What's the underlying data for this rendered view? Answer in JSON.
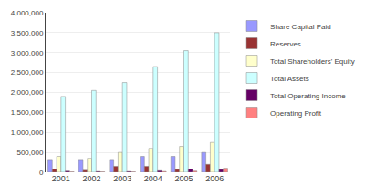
{
  "chart_data": {
    "type": "bar",
    "categories": [
      "2001",
      "2002",
      "2003",
      "2004",
      "2005",
      "2006"
    ],
    "series": [
      {
        "name": "Share Capital Paid",
        "color": "#9999FF",
        "values": [
          300000,
          300000,
          300000,
          400000,
          400000,
          500000
        ]
      },
      {
        "name": "Reserves",
        "color": "#993333",
        "values": [
          80000,
          50000,
          150000,
          150000,
          70000,
          200000
        ]
      },
      {
        "name": "Total Shareholders' Equity",
        "color": "#FFFFCC",
        "values": [
          400000,
          350000,
          500000,
          600000,
          650000,
          750000
        ]
      },
      {
        "name": "Total Assets",
        "color": "#CCFFFF",
        "values": [
          1900000,
          2050000,
          2250000,
          2650000,
          3050000,
          3500000
        ]
      },
      {
        "name": "Total Operating Income",
        "color": "#660066",
        "values": [
          30000,
          20000,
          20000,
          40000,
          80000,
          70000
        ]
      },
      {
        "name": "Operating Profit",
        "color": "#FF8080",
        "values": [
          10000,
          10000,
          10000,
          20000,
          30000,
          100000
        ]
      }
    ],
    "ylim": [
      0,
      4000000
    ],
    "yticks": [
      0,
      {
        "value": 500000,
        "label": "500,000"
      },
      {
        "value": 1000000,
        "label": "1,000,000"
      },
      {
        "value": 1500000,
        "label": "1,500,000"
      },
      {
        "value": 2000000,
        "label": "2,000,000"
      },
      {
        "value": 2500000,
        "label": "2,500,000"
      },
      {
        "value": 3000000,
        "label": "3,000,000"
      },
      {
        "value": 3500000,
        "label": "3,500,000"
      },
      {
        "value": 4000000,
        "label": "4,000,000"
      }
    ],
    "grid": true,
    "legend": "right"
  }
}
